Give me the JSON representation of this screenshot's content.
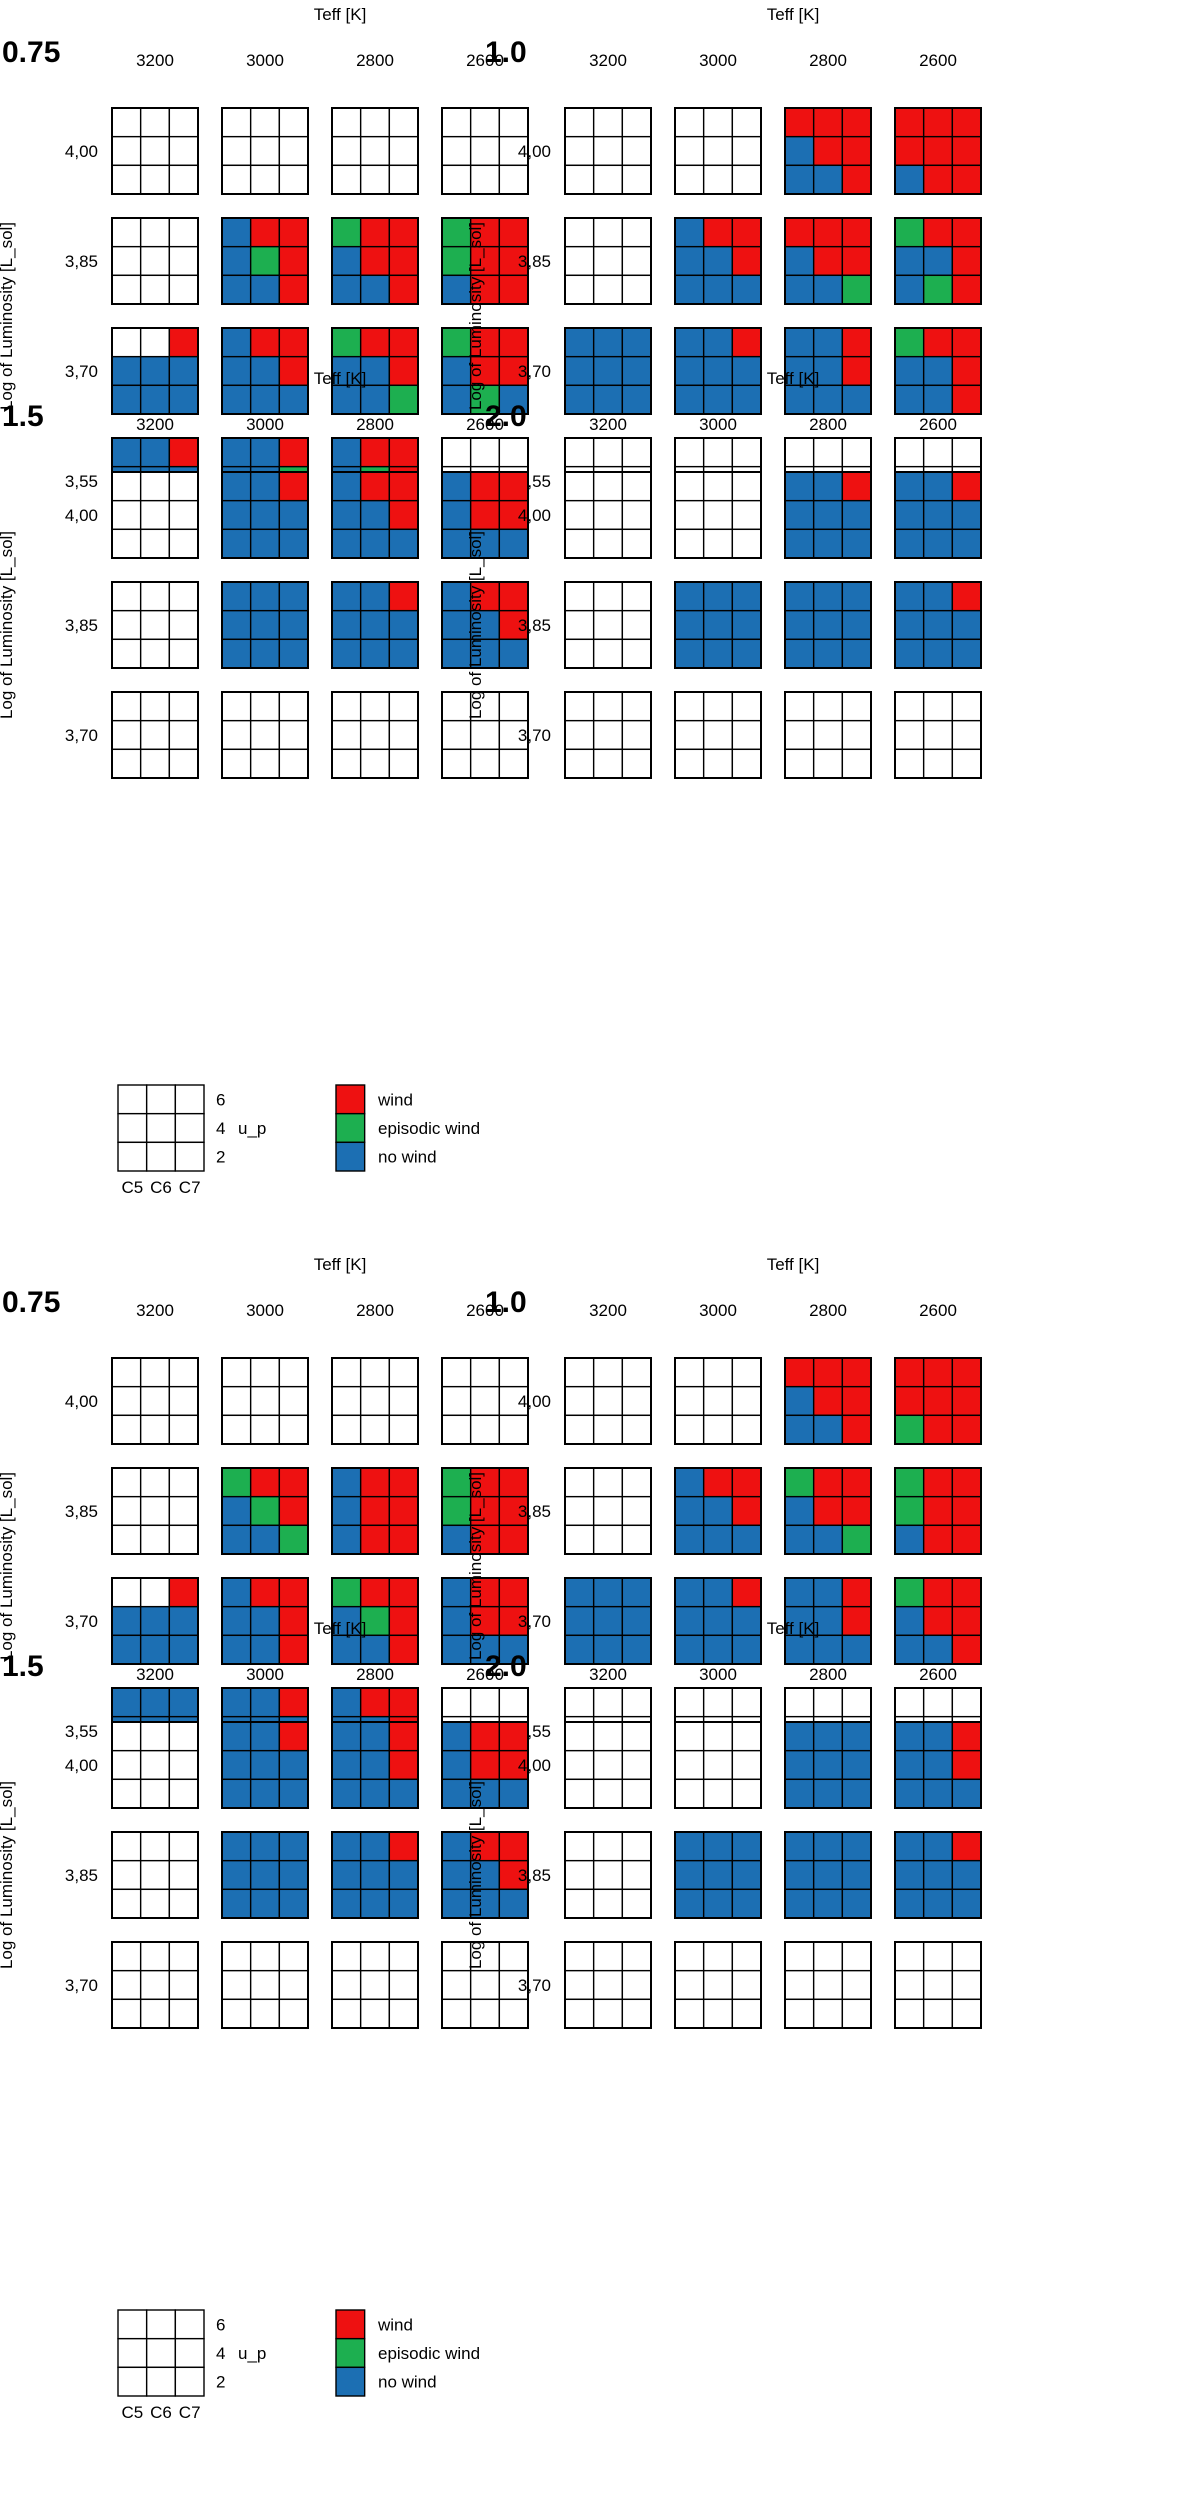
{
  "chart_data": {
    "type": "heatmap",
    "description_free": true,
    "xlabel": "Teff [K]",
    "ylabel": "Log of Luminosity [L_sol]",
    "colors": {
      "wind": "#EE1111",
      "episodic": "#1DAF50",
      "nowind": "#1C6FB3",
      "empty": "#FFFFFF"
    },
    "legend": {
      "rows_values": [
        "6",
        "4",
        "2"
      ],
      "row_param": "u_p",
      "cols": [
        "C5",
        "C6",
        "C7"
      ],
      "items": [
        {
          "key": "wind",
          "label": "wind"
        },
        {
          "key": "episodic",
          "label": "episodic wind"
        },
        {
          "key": "nowind",
          "label": "no wind"
        }
      ]
    },
    "blocks": [
      {
        "panels": [
          {
            "label": "0.75",
            "teff": [
              "3200",
              "3000",
              "2800",
              "2600"
            ],
            "lum": [
              "4,00",
              "3,85",
              "3,70",
              "3,55"
            ],
            "cells": [
              [
                "eeeeeeeee",
                "eeeeeeeee",
                "eeeeeeeee",
                "eeeeeeeee"
              ],
              [
                "eeeeeeeee",
                "bRRbGRbbR",
                "GRRbRRbbR",
                "GRRGRRbRR"
              ],
              [
                "eeRbbbbbb",
                "bRRbbRbbb",
                "GRRbbRbbG",
                "GRRbRRbGb"
              ],
              [
                "bbRbbbbbb",
                "bbRbbGbbG",
                "bRRbGRbbb",
                "eeeeeeeee"
              ]
            ]
          },
          {
            "label": "1.0",
            "teff": [
              "3200",
              "3000",
              "2800",
              "2600"
            ],
            "lum": [
              "4,00",
              "3,85",
              "3,70",
              "3,55"
            ],
            "cells": [
              [
                "eeeeeeeee",
                "eeeeeeeee",
                "RRRbRRbbR",
                "RRRRRRbRR"
              ],
              [
                "eeeeeeeee",
                "bRRbbRbbb",
                "RRRbRRbbG",
                "GRRbbRbGR"
              ],
              [
                "bbbbbbbbb",
                "bbRbbbbbb",
                "bbRbbRbbb",
                "GRRbbRbbR"
              ],
              [
                "eeeeeeeee",
                "eeeeeeeee",
                "eeeeeeeee",
                "eeeeeeeee"
              ]
            ]
          },
          {
            "label": "1.5",
            "teff": [
              "3200",
              "3000",
              "2800",
              "2600"
            ],
            "lum": [
              "4,00",
              "3,85",
              "3,70"
            ],
            "cells": [
              [
                "eeeeeeeee",
                "bbRbbbbbb",
                "bRRbbRbbb",
                "bRRbRRbbb"
              ],
              [
                "eeeeeeeee",
                "bbbbbbbbb",
                "bbRbbbbbb",
                "bRRbbRbbb"
              ],
              [
                "eeeeeeeee",
                "eeeeeeeee",
                "eeeeeeeee",
                "eeeeeeeee"
              ]
            ]
          },
          {
            "label": "2.0",
            "teff": [
              "3200",
              "3000",
              "2800",
              "2600"
            ],
            "lum": [
              "4,00",
              "3,85",
              "3,70"
            ],
            "cells": [
              [
                "eeeeeeeee",
                "eeeeeeeee",
                "bbRbbbbbb",
                "bbRbbbbbb"
              ],
              [
                "eeeeeeeee",
                "bbbbbbbbb",
                "bbbbbbbbb",
                "bbRbbbbbb"
              ],
              [
                "eeeeeeeee",
                "eeeeeeeee",
                "eeeeeeeee",
                "eeeeeeeee"
              ]
            ]
          }
        ]
      },
      {
        "panels": [
          {
            "label": "0.75",
            "teff": [
              "3200",
              "3000",
              "2800",
              "2600"
            ],
            "lum": [
              "4,00",
              "3,85",
              "3,70",
              "3,55"
            ],
            "cells": [
              [
                "eeeeeeeee",
                "eeeeeeeee",
                "eeeeeeeee",
                "eeeeeeeee"
              ],
              [
                "eeeeeeeee",
                "GRRbGRbbG",
                "bRRbRRbRR",
                "GRRGRRbRR"
              ],
              [
                "eeRbbbbbb",
                "bRRbbRbbR",
                "GRRbGRbbR",
                "bRRbRRbbb"
              ],
              [
                "bbbbbbbbb",
                "bbRbbbbbb",
                "bRRbbRbbb",
                "eeeeeeeee"
              ]
            ]
          },
          {
            "label": "1.0",
            "teff": [
              "3200",
              "3000",
              "2800",
              "2600"
            ],
            "lum": [
              "4,00",
              "3,85",
              "3,70",
              "3,55"
            ],
            "cells": [
              [
                "eeeeeeeee",
                "eeeeeeeee",
                "RRRbRRbbR",
                "RRRRRRGRR"
              ],
              [
                "eeeeeeeee",
                "bRRbbRbbb",
                "GRRbRRbbG",
                "GRRGRRbRR"
              ],
              [
                "bbbbbbbbb",
                "bbRbbbbbb",
                "bbRbbRbbb",
                "GRRbRRbbR"
              ],
              [
                "eeeeeeeee",
                "eeeeeeeee",
                "eeeeeeeee",
                "eeeeeeeee"
              ]
            ]
          },
          {
            "label": "1.5",
            "teff": [
              "3200",
              "3000",
              "2800",
              "2600"
            ],
            "lum": [
              "4,00",
              "3,85",
              "3,70"
            ],
            "cells": [
              [
                "eeeeeeeee",
                "bbRbbbbbb",
                "bbRbbRbbb",
                "bRRbRRbbb"
              ],
              [
                "eeeeeeeee",
                "bbbbbbbbb",
                "bbRbbbbbb",
                "bRRbbRbbb"
              ],
              [
                "eeeeeeeee",
                "eeeeeeeee",
                "eeeeeeeee",
                "eeeeeeeee"
              ]
            ]
          },
          {
            "label": "2.0",
            "teff": [
              "3200",
              "3000",
              "2800",
              "2600"
            ],
            "lum": [
              "4,00",
              "3,85",
              "3,70"
            ],
            "cells": [
              [
                "eeeeeeeee",
                "eeeeeeeee",
                "bbbbbbbbb",
                "bbRbbRbbb"
              ],
              [
                "eeeeeeeee",
                "bbbbbbbbb",
                "bbbbbbbbb",
                "bbRbbbbbb"
              ],
              [
                "eeeeeeeee",
                "eeeeeeeee",
                "eeeeeeeee",
                "eeeeeeeee"
              ]
            ]
          }
        ]
      }
    ]
  }
}
